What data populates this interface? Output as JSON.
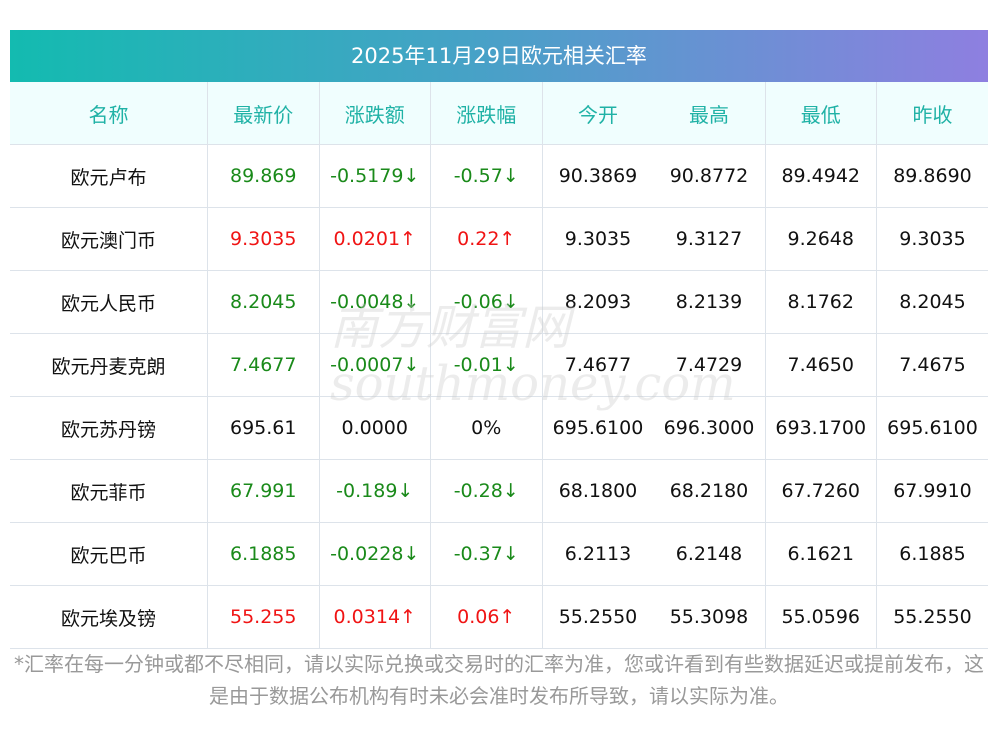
{
  "title": "2025年11月29日欧元相关汇率",
  "headers": [
    "名称",
    "最新价",
    "涨跌额",
    "涨跌幅",
    "今开",
    "最高",
    "最低",
    "昨收"
  ],
  "rows": [
    {
      "name": "欧元卢布",
      "price": "89.869",
      "change": "-0.5179↓",
      "pct": "-0.57↓",
      "open": "90.3869",
      "high": "90.8772",
      "low": "89.4942",
      "prev": "89.8690",
      "dir": "down"
    },
    {
      "name": "欧元澳门币",
      "price": "9.3035",
      "change": "0.0201↑",
      "pct": "0.22↑",
      "open": "9.3035",
      "high": "9.3127",
      "low": "9.2648",
      "prev": "9.3035",
      "dir": "up"
    },
    {
      "name": "欧元人民币",
      "price": "8.2045",
      "change": "-0.0048↓",
      "pct": "-0.06↓",
      "open": "8.2093",
      "high": "8.2139",
      "low": "8.1762",
      "prev": "8.2045",
      "dir": "down"
    },
    {
      "name": "欧元丹麦克朗",
      "price": "7.4677",
      "change": "-0.0007↓",
      "pct": "-0.01↓",
      "open": "7.4677",
      "high": "7.4729",
      "low": "7.4650",
      "prev": "7.4675",
      "dir": "down"
    },
    {
      "name": "欧元苏丹镑",
      "price": "695.61",
      "change": "0.0000",
      "pct": "0%",
      "open": "695.6100",
      "high": "696.3000",
      "low": "693.1700",
      "prev": "695.6100",
      "dir": "flat"
    },
    {
      "name": "欧元菲币",
      "price": "67.991",
      "change": "-0.189↓",
      "pct": "-0.28↓",
      "open": "68.1800",
      "high": "68.2180",
      "low": "67.7260",
      "prev": "67.9910",
      "dir": "down"
    },
    {
      "name": "欧元巴币",
      "price": "6.1885",
      "change": "-0.0228↓",
      "pct": "-0.37↓",
      "open": "6.2113",
      "high": "6.2148",
      "low": "6.1621",
      "prev": "6.1885",
      "dir": "down"
    },
    {
      "name": "欧元埃及镑",
      "price": "55.255",
      "change": "0.0314↑",
      "pct": "0.06↑",
      "open": "55.2550",
      "high": "55.3098",
      "low": "55.0596",
      "prev": "55.2550",
      "dir": "up"
    }
  ],
  "watermark": "南方财富网 southmoney.com",
  "note": "*汇率在每一分钟或都不尽相同，请以实际兑换或交易时的汇率为准，您或许看到有些数据延迟或提前发布，这是由于数据公布机构有时未必会准时发布所导致，请以实际为准。",
  "colors": {
    "up": "#f01414",
    "down": "#1a8a1a",
    "header": "#20b2a6"
  }
}
